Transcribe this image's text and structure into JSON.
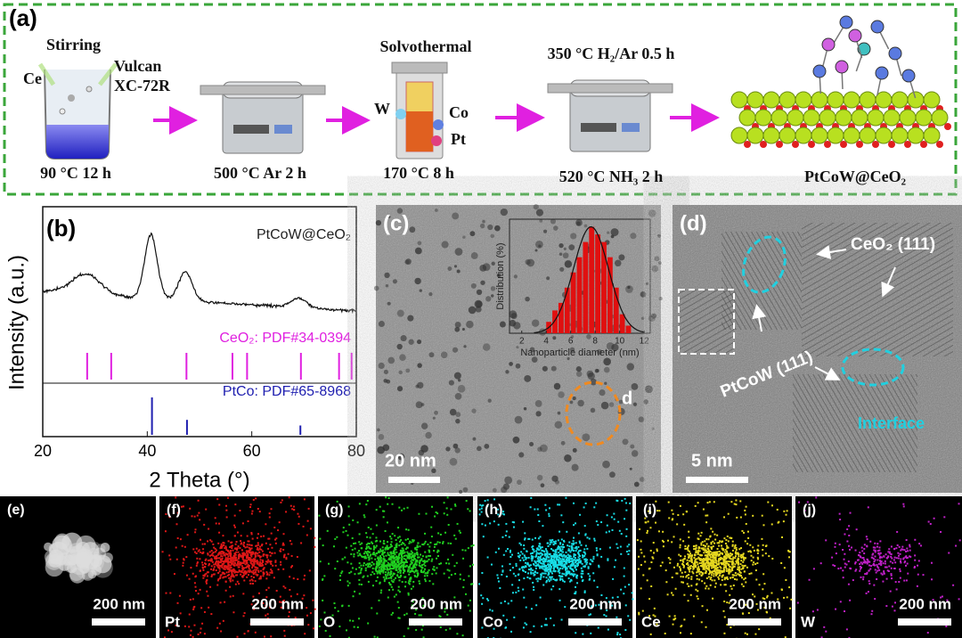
{
  "panel_a": {
    "label": "(a)",
    "stirring": "Stirring",
    "ce": "Ce",
    "vulcan": "Vulcan",
    "xc": "XC-72R",
    "step1": "90 °C 12 h",
    "step2": "500 °C Ar 2 h",
    "solvothermal": "Solvothermal",
    "w": "W",
    "co": "Co",
    "pt": "Pt",
    "step3": "170 °C 8 h",
    "step4_top": "350 °C H₂/Ar 0.5 h",
    "step4": "520 °C NH₃ 2 h",
    "product": "PtCoW@CeO₂"
  },
  "panel_b": {
    "label": "(b)",
    "ylabel": "Intensity (a.u.)",
    "xlabel": "2 Theta (°)",
    "xlim": [
      20,
      80
    ],
    "xticks": [
      20,
      40,
      60,
      80
    ],
    "pattern": {
      "name": "PtCoW@CeO₂",
      "color": "#111111",
      "centers": [
        28.5,
        40.7,
        47.3,
        69
      ],
      "heights": [
        25,
        100,
        45,
        15
      ],
      "widths": [
        2.5,
        1.2,
        1.3,
        1.5
      ]
    },
    "references": [
      {
        "name": "CeO₂:  PDF#34-0394",
        "color": "#e020e0",
        "peaks": [
          28.5,
          33.1,
          47.5,
          56.3,
          59.1,
          69.4,
          76.7,
          79.1
        ],
        "heights": [
          100,
          100,
          100,
          100,
          100,
          100,
          100,
          100
        ]
      },
      {
        "name": "PtCo: PDF#65-8968",
        "color": "#2020b0",
        "peaks": [
          40.9,
          47.6,
          69.3
        ],
        "heights": [
          100,
          40,
          25
        ]
      }
    ]
  },
  "panel_c": {
    "label": "(c)",
    "region": "d",
    "scale": "20 nm",
    "inset": {
      "ylabel": "Distribution (%)",
      "xlabel": "Nanoparticle diameter (nm)",
      "xlim": [
        1,
        12.5
      ],
      "xticks": [
        2,
        4,
        6,
        8,
        10,
        12
      ],
      "ylim": [
        0,
        30
      ],
      "color": "#e01010",
      "bins": [
        4,
        4.5,
        5,
        5.5,
        6,
        6.5,
        7,
        7.5,
        8,
        8.5,
        9,
        9.5,
        10,
        10.5,
        11
      ],
      "counts": [
        3,
        6,
        8,
        12,
        16,
        20,
        24,
        28,
        26,
        24,
        20,
        12,
        5,
        2
      ]
    }
  },
  "panel_d": {
    "label": "(d)",
    "ceo2": "CeO₂ (111)",
    "ptcow": "PtCoW (111)",
    "interface": "Interface",
    "scale": "5 nm"
  },
  "maps": [
    {
      "label": "(e)",
      "scale": "200 nm"
    },
    {
      "label": "(f)",
      "element": "Pt",
      "scale": "200 nm",
      "color": "#e01818"
    },
    {
      "label": "(g)",
      "element": "O",
      "scale": "200 nm",
      "color": "#20d020"
    },
    {
      "label": "(h)",
      "element": "Co",
      "scale": "200 nm",
      "color": "#18dde6"
    },
    {
      "label": "(i)",
      "element": "Ce",
      "scale": "200 nm",
      "color": "#e6d820"
    },
    {
      "label": "(j)",
      "element": "W",
      "scale": "200 nm",
      "color": "#c020c8"
    }
  ]
}
